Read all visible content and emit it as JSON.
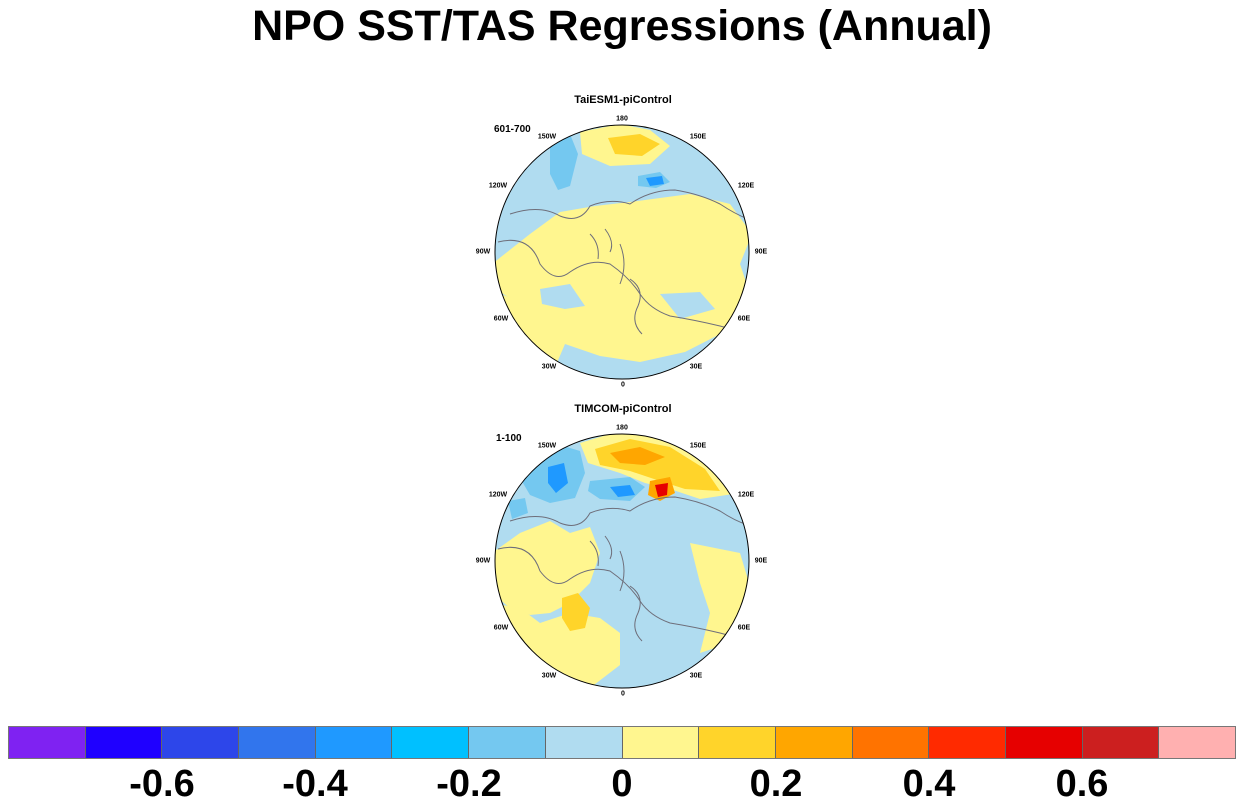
{
  "title": "NPO SST/TAS Regressions (Annual)",
  "panels": [
    {
      "title": "TaiESM1-piControl",
      "period": "601-700",
      "lon_labels": [
        "180",
        "150E",
        "120E",
        "90E",
        "60E",
        "30E",
        "0",
        "30W",
        "60W",
        "90W",
        "120W",
        "150W"
      ]
    },
    {
      "title": "TIMCOM-piControl",
      "period": "1-100",
      "lon_labels": [
        "180",
        "150E",
        "120E",
        "90E",
        "60E",
        "30E",
        "0",
        "30W",
        "60W",
        "90W",
        "120W",
        "150W"
      ]
    }
  ],
  "colorbar": {
    "colors": [
      "#7f22f2",
      "#1f00ff",
      "#2d46ea",
      "#3175ed",
      "#1f99ff",
      "#00c0ff",
      "#74c8f0",
      "#b0dcf0",
      "#fff68f",
      "#ffd42a",
      "#ffa600",
      "#ff7300",
      "#ff2a00",
      "#e60000",
      "#cc1f1f",
      "#ffb0b0"
    ],
    "tick_labels": [
      "-0.6",
      "-0.4",
      "-0.2",
      "0",
      "0.2",
      "0.4",
      "0.6"
    ]
  },
  "legend": {
    "position": "bottom",
    "type": "colorbar",
    "range": [
      -0.8,
      0.8
    ],
    "interval": 0.1
  }
}
